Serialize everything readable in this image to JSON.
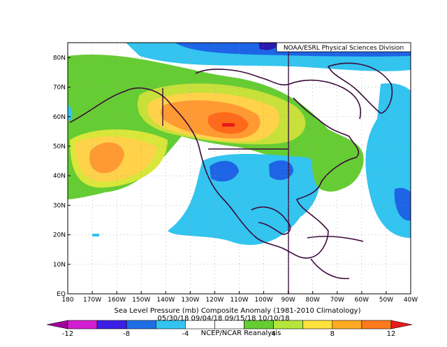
{
  "credit": "NOAA/ESRL Physical Sciences Division",
  "lat_labels": [
    "80N",
    "70N",
    "60N",
    "50N",
    "40N",
    "30N",
    "20N",
    "10N",
    "EQ"
  ],
  "lon_labels": [
    "180",
    "170W",
    "160W",
    "150W",
    "140W",
    "130W",
    "120W",
    "110W",
    "100W",
    "90W",
    "80W",
    "70W",
    "60W",
    "50W",
    "40W"
  ],
  "caption": {
    "title": "Sea Level Pressure (mb) Composite Anomaly (1981-2010 Climatology)",
    "dates": "05/30/18 09/04/18 09/15/18 10/10/18",
    "source": "NCEP/NCAR Reanalysis"
  },
  "colorbar_labels": [
    "-12",
    "-8",
    "-4",
    "4",
    "8",
    "12"
  ]
}
